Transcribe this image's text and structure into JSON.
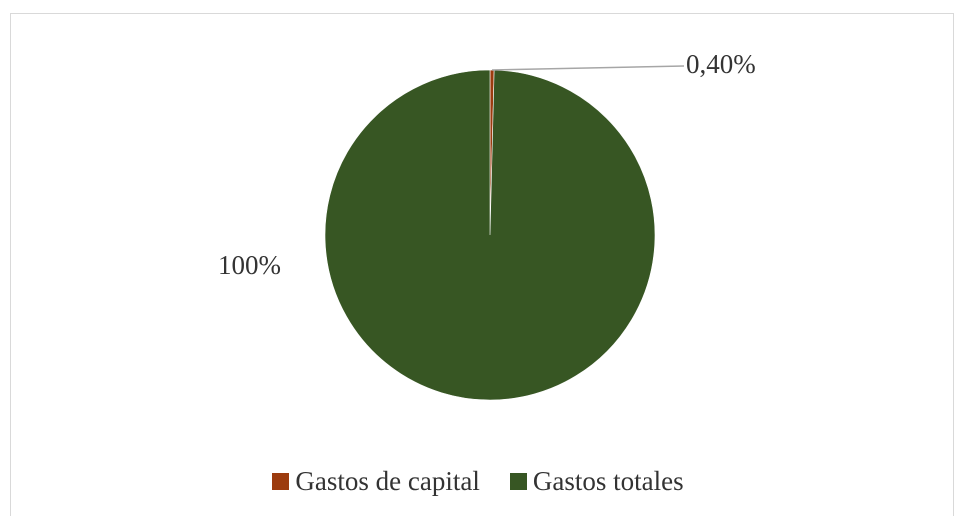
{
  "chart_data": {
    "type": "pie",
    "title": "",
    "slices": [
      {
        "name": "Gastos de capital",
        "value": 0.4,
        "label": "0,40%",
        "color": "#9C3B0E"
      },
      {
        "name": "Gastos totales",
        "value": 99.6,
        "label": "100%",
        "color": "#375623"
      }
    ],
    "legend": {
      "position": "bottom"
    },
    "leader_line_color": "#a6a6a6"
  }
}
